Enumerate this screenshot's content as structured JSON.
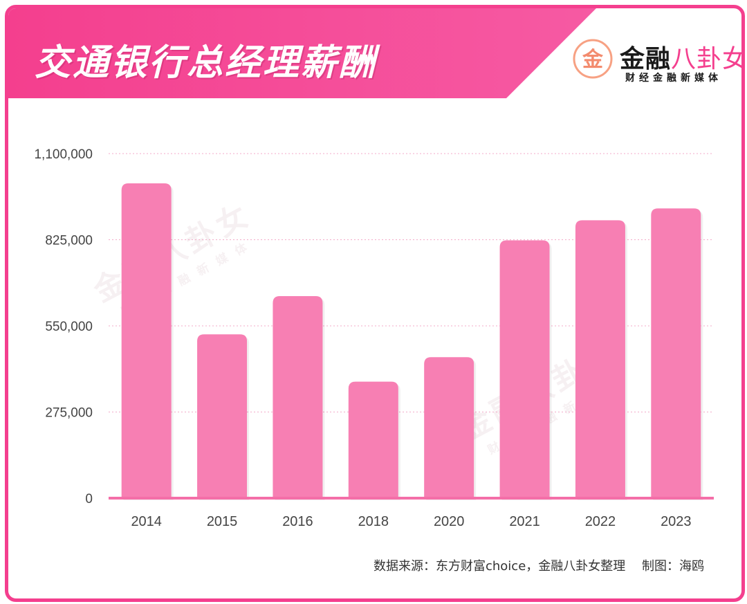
{
  "header": {
    "title": "交通银行总经理薪酬",
    "brand_name_a": "金融",
    "brand_name_b": "八卦女",
    "brand_tagline": "财经金融新媒体",
    "brand_logo_glyph": "金"
  },
  "watermark": {
    "main": "金融八卦女",
    "sub": "财经金融新媒体"
  },
  "footer": {
    "source": "数据来源：东方财富choice，金融八卦女整理　 制图：海鸥"
  },
  "colors": {
    "accent": "#f43f8e",
    "bar": "#f77fb3",
    "header_light": "#f65aa3"
  },
  "chart_data": {
    "type": "bar",
    "title": "交通银行总经理薪酬",
    "xlabel": "",
    "ylabel": "",
    "categories": [
      "2014",
      "2015",
      "2016",
      "2018",
      "2020",
      "2021",
      "2022",
      "2023"
    ],
    "values": [
      1005000,
      523000,
      645000,
      372000,
      450000,
      823000,
      887000,
      925000
    ],
    "ylim": [
      0,
      1100000
    ],
    "yticks": [
      0,
      275000,
      550000,
      825000,
      1100000
    ],
    "ytick_labels": [
      "0",
      "275,000",
      "550,000",
      "825,000",
      "1,100,000"
    ],
    "grid": true,
    "legend": "none"
  }
}
